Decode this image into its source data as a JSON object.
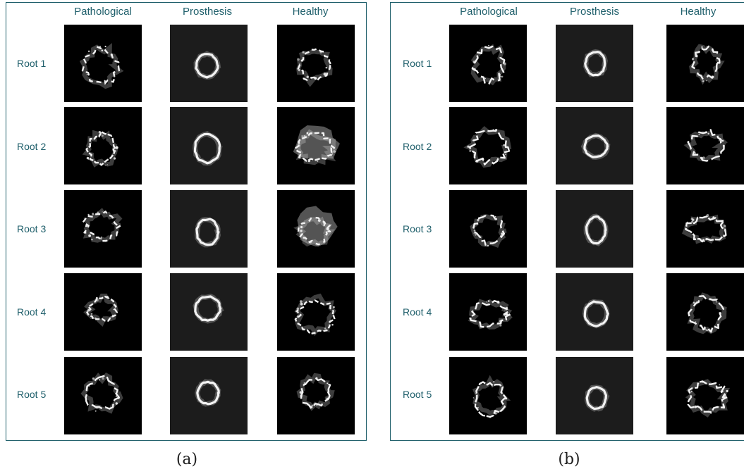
{
  "panels": [
    {
      "id": "a",
      "caption": "(a)",
      "columns": [
        "Pathological",
        "Prosthesis",
        "Healthy"
      ],
      "rows": [
        "Root 1",
        "Root 2",
        "Root 3",
        "Root 4",
        "Root 5"
      ]
    },
    {
      "id": "b",
      "caption": "(b)",
      "columns": [
        "Pathological",
        "Prosthesis",
        "Healthy"
      ],
      "rows": [
        "Root 1",
        "Root 2",
        "Root 3",
        "Root 4",
        "Root 5"
      ]
    }
  ],
  "colors": {
    "frame": "#1f5f6b",
    "label_text": "#1f5f6b",
    "image_background": "#000000",
    "prosthesis_background": "#1c1c1c",
    "ring": "#f2f2f2"
  }
}
